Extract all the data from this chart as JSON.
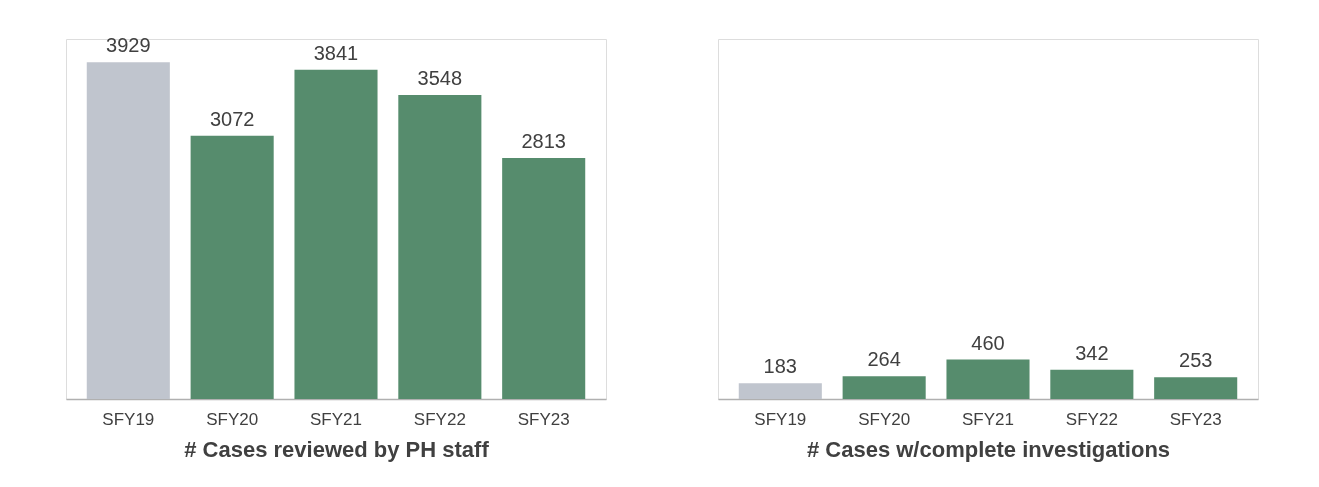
{
  "chart_data": [
    {
      "type": "bar",
      "xlabel": "# Cases reviewed by PH staff",
      "categories": [
        "SFY19",
        "SFY20",
        "SFY21",
        "SFY22",
        "SFY23"
      ],
      "values": [
        3929,
        3072,
        3841,
        3548,
        2813
      ],
      "colors": [
        "#c0c5ce",
        "#568c6d",
        "#568c6d",
        "#568c6d",
        "#568c6d"
      ],
      "ylim": [
        0,
        4200
      ],
      "data_labels": true,
      "tick_labels": "x",
      "grid": false,
      "legend": false
    },
    {
      "type": "bar",
      "xlabel": "# Cases w/complete investigations",
      "categories": [
        "SFY19",
        "SFY20",
        "SFY21",
        "SFY22",
        "SFY23"
      ],
      "values": [
        183,
        264,
        460,
        342,
        253
      ],
      "colors": [
        "#c0c5ce",
        "#568c6d",
        "#568c6d",
        "#568c6d",
        "#568c6d"
      ],
      "ylim": [
        0,
        4200
      ],
      "data_labels": true,
      "tick_labels": "x",
      "grid": false,
      "legend": false
    }
  ]
}
